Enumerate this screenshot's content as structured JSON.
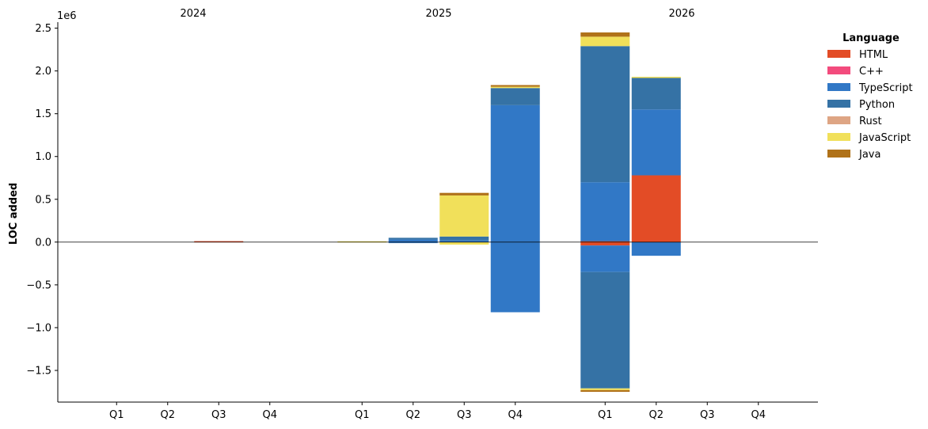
{
  "chart_data": {
    "type": "bar",
    "stacked": true,
    "ylabel": "LOC added",
    "y_offset_label": "1e6",
    "ylim": [
      -1870000,
      2570000
    ],
    "yticks": [
      -1500000,
      -1000000,
      -500000,
      0,
      500000,
      1000000,
      1500000,
      2000000,
      2500000
    ],
    "ytick_labels": [
      "−1.5",
      "−1.0",
      "−0.5",
      "0.0",
      "0.5",
      "1.0",
      "1.5",
      "2.0",
      "2.5"
    ],
    "years": [
      "2024",
      "2025",
      "2026"
    ],
    "quarters": [
      "Q1",
      "Q2",
      "Q3",
      "Q4"
    ],
    "legend": {
      "title": "Language",
      "placement": "outside-right",
      "entries": [
        "HTML",
        "C++",
        "TypeScript",
        "Python",
        "Rust",
        "JavaScript",
        "Java"
      ]
    },
    "colors": {
      "HTML": "#e34c26",
      "C++": "#f34b7d",
      "TypeScript": "#3178c6",
      "Python": "#3572a5",
      "Rust": "#dea584",
      "JavaScript": "#f1e05a",
      "Java": "#b07219"
    },
    "grid": false,
    "bars": [
      {
        "year": "2024",
        "quarter": "Q3",
        "segments": [
          {
            "language": "HTML",
            "from": 0,
            "to": 8000
          }
        ]
      },
      {
        "year": "2025",
        "quarter": "Q1",
        "segments": [
          {
            "language": "JavaScript",
            "from": 0,
            "to": 5000
          }
        ]
      },
      {
        "year": "2025",
        "quarter": "Q2",
        "segments": [
          {
            "language": "TypeScript",
            "from": 0,
            "to": 30000
          },
          {
            "language": "Python",
            "from": 30000,
            "to": 50000
          },
          {
            "language": "TypeScript",
            "from": 0,
            "to": -10000
          }
        ]
      },
      {
        "year": "2025",
        "quarter": "Q3",
        "segments": [
          {
            "language": "TypeScript",
            "from": 0,
            "to": 20000
          },
          {
            "language": "Python",
            "from": 20000,
            "to": 65000
          },
          {
            "language": "JavaScript",
            "from": 65000,
            "to": 545000
          },
          {
            "language": "Java",
            "from": 545000,
            "to": 575000
          },
          {
            "language": "JavaScript",
            "from": 0,
            "to": -30000
          }
        ]
      },
      {
        "year": "2025",
        "quarter": "Q4",
        "segments": [
          {
            "language": "TypeScript",
            "from": 0,
            "to": 1600000
          },
          {
            "language": "Python",
            "from": 1600000,
            "to": 1800000
          },
          {
            "language": "JavaScript",
            "from": 1800000,
            "to": 1815000
          },
          {
            "language": "Java",
            "from": 1815000,
            "to": 1835000
          },
          {
            "language": "TypeScript",
            "from": 0,
            "to": -820000
          }
        ]
      },
      {
        "year": "2026",
        "quarter": "Q1",
        "segments": [
          {
            "language": "HTML",
            "from": 0,
            "to": 10000
          },
          {
            "language": "TypeScript",
            "from": 10000,
            "to": 700000
          },
          {
            "language": "Python",
            "from": 700000,
            "to": 2290000
          },
          {
            "language": "JavaScript",
            "from": 2290000,
            "to": 2400000
          },
          {
            "language": "Java",
            "from": 2400000,
            "to": 2450000
          },
          {
            "language": "HTML",
            "from": 0,
            "to": -40000
          },
          {
            "language": "TypeScript",
            "from": -40000,
            "to": -350000
          },
          {
            "language": "Python",
            "from": -350000,
            "to": -1710000
          },
          {
            "language": "JavaScript",
            "from": -1710000,
            "to": -1730000
          },
          {
            "language": "Java",
            "from": -1730000,
            "to": -1750000
          }
        ]
      },
      {
        "year": "2026",
        "quarter": "Q2",
        "segments": [
          {
            "language": "HTML",
            "from": 0,
            "to": 780000
          },
          {
            "language": "TypeScript",
            "from": 780000,
            "to": 1550000
          },
          {
            "language": "Python",
            "from": 1550000,
            "to": 1920000
          },
          {
            "language": "JavaScript",
            "from": 1920000,
            "to": 1930000
          },
          {
            "language": "TypeScript",
            "from": 0,
            "to": -160000
          }
        ]
      }
    ]
  }
}
